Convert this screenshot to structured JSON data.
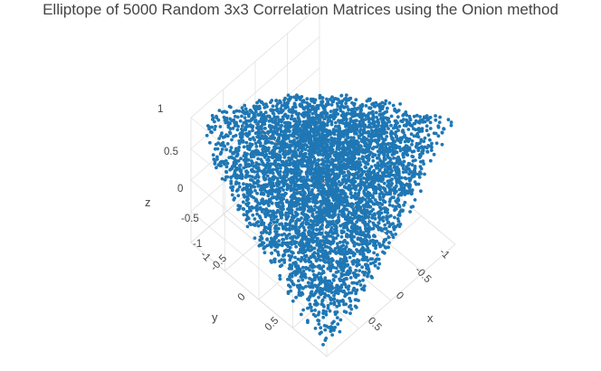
{
  "chart_data": {
    "type": "scatter3d",
    "title": "Elliptope of 5000 Random 3x3 Correlation Matrices using the Onion method",
    "n_points": 5000,
    "point_color": "#1f77b4",
    "axes": {
      "x": {
        "label": "x",
        "range": [
          -1,
          1
        ],
        "ticks": [
          "-1",
          "-0.5",
          "0",
          "0.5"
        ]
      },
      "y": {
        "label": "y",
        "range": [
          -1,
          1
        ],
        "ticks": [
          "-1",
          "-0.5",
          "0",
          "0.5"
        ]
      },
      "z": {
        "label": "z",
        "range": [
          -1,
          1
        ],
        "ticks": [
          "-1",
          "-0.5",
          "0",
          "0.5",
          "1"
        ]
      }
    },
    "grid": true,
    "legend": "none"
  }
}
